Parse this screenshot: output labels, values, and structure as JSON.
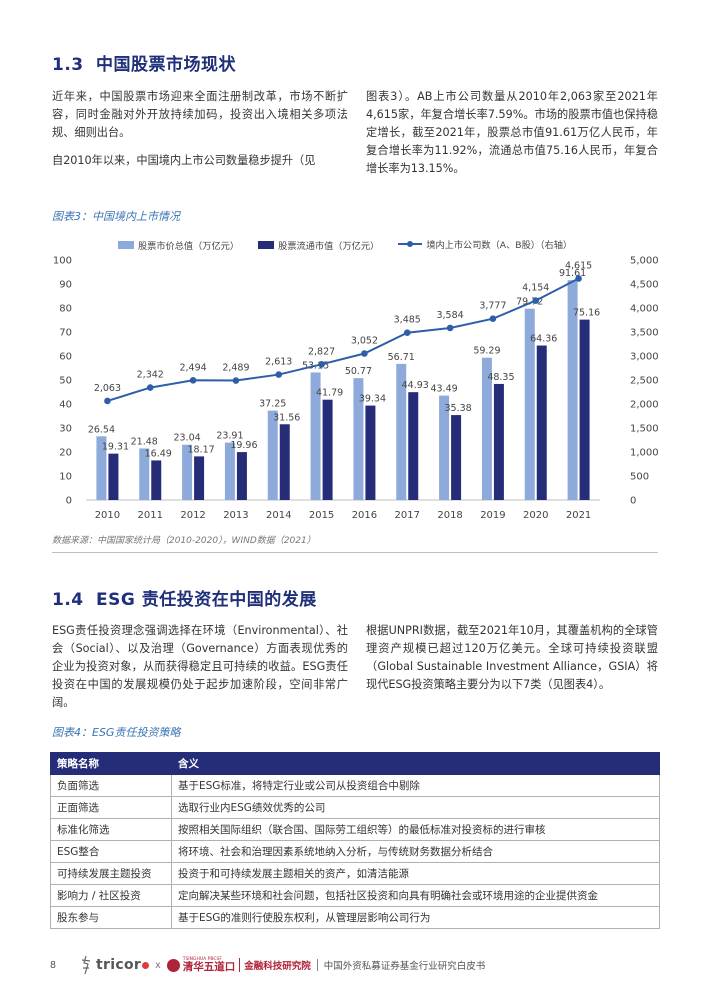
{
  "section13": {
    "number": "1.3",
    "title": "中国股票市场现状",
    "left_paragraphs": [
      "近年来，中国股票市场迎来全面注册制改革，市场不断扩容，同时金融对外开放持续加码，投资出入境相关多项法规、细则出台。",
      "自2010年以来，中国境内上市公司数量稳步提升（见"
    ],
    "right_paragraph": "图表3）。AB上市公司数量从2010年2,063家至2021年4,615家，年复合增长率7.59%。市场的股票市值也保持稳定增长，截至2021年，股票总市值91.61万亿人民币，年复合增长率为11.92%，流通总市值75.16人民币，年复合增长率为13.15%。"
  },
  "figure3": {
    "caption": "图表3：中国境内上市情况",
    "source": "数据来源：中国国家统计局（2010-2020），WIND数据（2021）"
  },
  "chart_data": {
    "type": "bar",
    "categories": [
      "2010",
      "2011",
      "2012",
      "2013",
      "2014",
      "2015",
      "2016",
      "2017",
      "2018",
      "2019",
      "2020",
      "2021"
    ],
    "series": [
      {
        "name": "股票市价总值（万亿元）",
        "type": "bar",
        "axis": "left",
        "color": "#8eaadb",
        "values": [
          26.54,
          21.48,
          23.04,
          23.91,
          37.25,
          53.15,
          50.77,
          56.71,
          43.49,
          59.29,
          79.72,
          91.61
        ],
        "labels": [
          "26.54",
          "21.48",
          "23.04",
          "23.91",
          "37.25",
          "53.15",
          "50.77",
          "56.71",
          "43.49",
          "59.29",
          "79.72",
          "91.61"
        ]
      },
      {
        "name": "股票流通市值（万亿元）",
        "type": "bar",
        "axis": "left",
        "color": "#262d78",
        "values": [
          19.31,
          16.49,
          18.17,
          19.96,
          31.56,
          41.79,
          39.34,
          44.93,
          35.38,
          48.35,
          64.36,
          75.16
        ],
        "labels": [
          "19.31",
          "16.49",
          "18.17",
          "19.96",
          "31.56",
          "41.79",
          "39.34",
          "44.93",
          "35.38",
          "48.35",
          "64.36",
          "75.16"
        ]
      },
      {
        "name": "境内上市公司数（A、B股）（右轴）",
        "type": "line",
        "axis": "right",
        "color": "#2f5ea8",
        "values": [
          2063,
          2342,
          2494,
          2489,
          2613,
          2827,
          3052,
          3485,
          3584,
          3777,
          4154,
          4615
        ],
        "labels": [
          "2,063",
          "2,342",
          "2,494",
          "2,489",
          "2,613",
          "2,827",
          "3,052",
          "3,485",
          "3,584",
          "3,777",
          "4,154",
          "4,615"
        ]
      }
    ],
    "y_left": {
      "min": 0,
      "max": 100,
      "ticks": [
        "0",
        "10",
        "20",
        "30",
        "40",
        "50",
        "60",
        "70",
        "80",
        "90",
        "100"
      ]
    },
    "y_right": {
      "min": 0,
      "max": 5000,
      "ticks": [
        "0",
        "500",
        "1,000",
        "1,500",
        "2,000",
        "2,500",
        "3,000",
        "3,500",
        "4,000",
        "4,500",
        "5,000"
      ]
    },
    "legend_position": "top",
    "grid": false
  },
  "section14": {
    "number": "1.4",
    "title": "ESG 责任投资在中国的发展",
    "left_paragraph": "ESG责任投资理念强调选择在环境（Environmental）、社会（Social）、以及治理（Governance）方面表现优秀的企业为投资对象，从而获得稳定且可持续的收益。ESG责任投资在中国的发展规模仍处于起步加速阶段，空间非常广阔。",
    "right_paragraph": "根据UNPRI数据，截至2021年10月，其覆盖机构的全球管理资产规模已超过120万亿美元。全球可持续投资联盟（Global Sustainable Investment Alliance，GSIA）将现代ESG投资策略主要分为以下7类（见图表4）。"
  },
  "figure4": {
    "caption": "图表4：ESG责任投资策略",
    "headers": [
      "策略名称",
      "含义"
    ],
    "rows": [
      [
        "负面筛选",
        "基于ESG标准，将特定行业或公司从投资组合中剔除"
      ],
      [
        "正面筛选",
        "选取行业内ESG绩效优秀的公司"
      ],
      [
        "标准化筛选",
        "按照相关国际组织（联合国、国际劳工组织等）的最低标准对投资标的进行审核"
      ],
      [
        "ESG整合",
        "将环境、社会和治理因素系统地纳入分析，与传统财务数据分析结合"
      ],
      [
        "可持续发展主题投资",
        "投资于和可持续发展主题相关的资产，如清洁能源"
      ],
      [
        "影响力 / 社区投资",
        "定向解决某些环境和社会问题，包括社区投资和向具有明确社会或环境用途的企业提供资金"
      ],
      [
        "股东参与",
        "基于ESG的准则行使股东权利，从管理层影响公司行为"
      ]
    ]
  },
  "footer": {
    "page_number": "8",
    "logo_tricor": "tricor",
    "separator": "x",
    "logo_tsinghua": "清华五道口",
    "logo_tsinghua_sub": "TSINGHUA PBCSF",
    "logo_fintech": "金融科技研究院",
    "title": "中国外资私募证券基金行业研究白皮书"
  }
}
